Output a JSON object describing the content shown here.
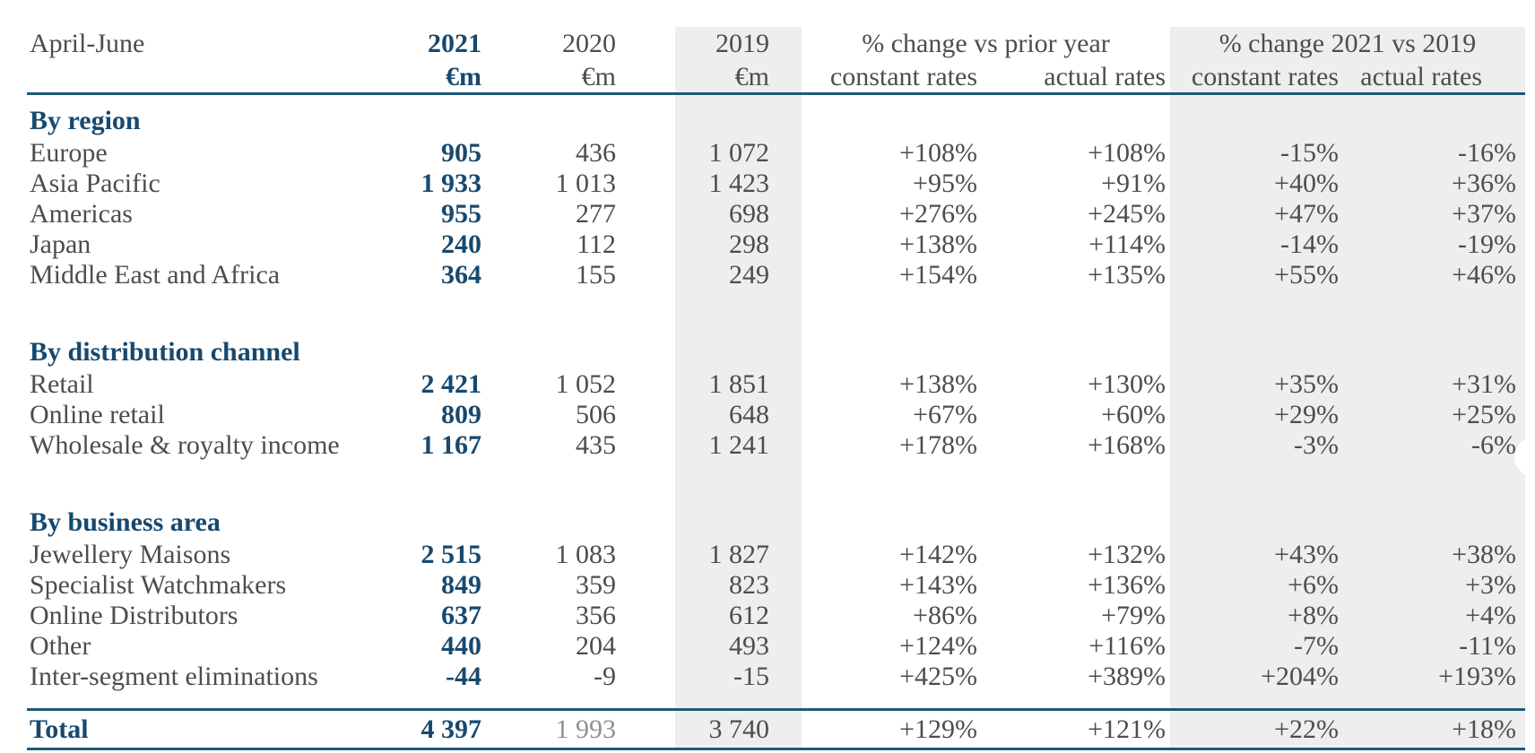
{
  "meta": {
    "period_label": "April-June"
  },
  "colors": {
    "accent_blue": "#17496f",
    "rule_blue": "#1d5a78",
    "text_gray": "#4d4d4d",
    "muted_gray": "#909090",
    "band_gray": "#eeeeee",
    "background": "#ffffff"
  },
  "header": {
    "year_2021": "2021",
    "year_2020": "2020",
    "year_2019": "2019",
    "unit_2021": "€m",
    "unit_2020": "€m",
    "unit_2019": "€m",
    "group_prior_year": "% change vs prior year",
    "group_vs_2019": "% change 2021 vs 2019",
    "sub_constant_prior": "constant rates",
    "sub_actual_prior": "actual rates",
    "sub_constant_2019": "constant rates",
    "sub_actual_2019": "actual rates"
  },
  "sections": [
    {
      "title": "By region",
      "rows": [
        {
          "label": "Europe",
          "values": [
            "905",
            "436",
            "1 072",
            "+108%",
            "+108%",
            "-15%",
            "-16%"
          ]
        },
        {
          "label": "Asia Pacific",
          "values": [
            "1 933",
            "1 013",
            "1 423",
            "+95%",
            "+91%",
            "+40%",
            "+36%"
          ]
        },
        {
          "label": "Americas",
          "values": [
            "955",
            "277",
            "698",
            "+276%",
            "+245%",
            "+47%",
            "+37%"
          ]
        },
        {
          "label": "Japan",
          "values": [
            "240",
            "112",
            "298",
            "+138%",
            "+114%",
            "-14%",
            "-19%"
          ]
        },
        {
          "label": "Middle East and Africa",
          "values": [
            "364",
            "155",
            "249",
            "+154%",
            "+135%",
            "+55%",
            "+46%"
          ]
        }
      ]
    },
    {
      "title": "By distribution channel",
      "rows": [
        {
          "label": "Retail",
          "values": [
            "2 421",
            "1 052",
            "1 851",
            "+138%",
            "+130%",
            "+35%",
            "+31%"
          ]
        },
        {
          "label": "Online retail",
          "values": [
            "809",
            "506",
            "648",
            "+67%",
            "+60%",
            "+29%",
            "+25%"
          ]
        },
        {
          "label": "Wholesale & royalty income",
          "values": [
            "1 167",
            "435",
            "1 241",
            "+178%",
            "+168%",
            "-3%",
            "-6%"
          ]
        }
      ]
    },
    {
      "title": "By business area",
      "rows": [
        {
          "label": "Jewellery Maisons",
          "values": [
            "2 515",
            "1 083",
            "1 827",
            "+142%",
            "+132%",
            "+43%",
            "+38%"
          ]
        },
        {
          "label": "Specialist Watchmakers",
          "values": [
            "849",
            "359",
            "823",
            "+143%",
            "+136%",
            "+6%",
            "+3%"
          ]
        },
        {
          "label": "Online Distributors",
          "values": [
            "637",
            "356",
            "612",
            "+86%",
            "+79%",
            "+8%",
            "+4%"
          ]
        },
        {
          "label": "Other",
          "values": [
            "440",
            "204",
            "493",
            "+124%",
            "+116%",
            "-7%",
            "-11%"
          ]
        },
        {
          "label": "Inter-segment eliminations",
          "values": [
            "-44",
            "-9",
            "-15",
            "+425%",
            "+389%",
            "+204%",
            "+193%"
          ]
        }
      ]
    }
  ],
  "total": {
    "label": "Total",
    "values": [
      "4 397",
      "1 993",
      "3 740",
      "+129%",
      "+121%",
      "+22%",
      "+18%"
    ]
  }
}
